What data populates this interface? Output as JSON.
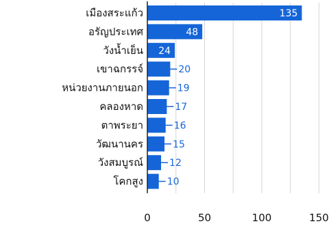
{
  "chart_data": {
    "type": "bar",
    "orientation": "horizontal",
    "categories": [
      "เมืองสระแก้ว",
      "อรัญประเทศ",
      "วังน้ำเย็น",
      "เขาฉกรรจ์",
      "หน่วยงานภายนอก",
      "คลองหาด",
      "ตาพระยา",
      "วัฒนานคร",
      "วังสมบูรณ์",
      "โคกสูง"
    ],
    "values": [
      135,
      48,
      24,
      20,
      19,
      17,
      16,
      15,
      12,
      10
    ],
    "xticks": [
      "0",
      "50",
      "100",
      "150"
    ],
    "xlim": [
      0,
      150
    ],
    "grid": true,
    "legend": "none",
    "colors": {
      "bar": "#1565d8",
      "grid": "#d6d6d6",
      "axis": "#222222",
      "value_inside": "#ffffff",
      "value_outside": "#1565d8"
    }
  }
}
